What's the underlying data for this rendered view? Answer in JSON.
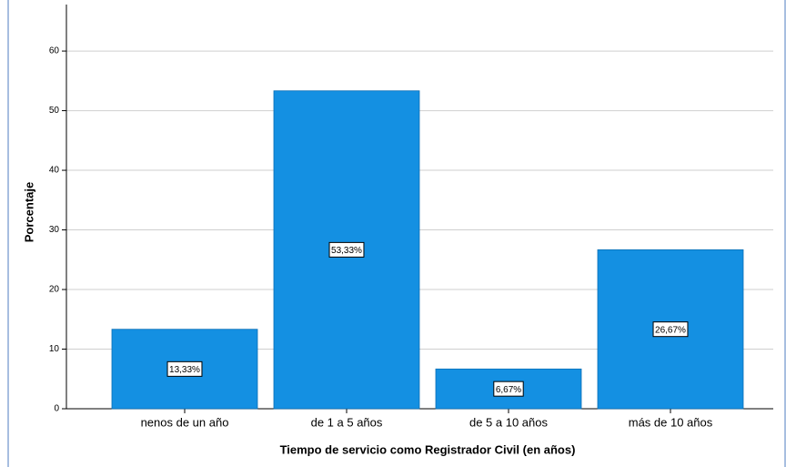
{
  "chart_data": {
    "type": "bar",
    "x_label": "Tiempo de servicio como Registrador Civil (en años)",
    "y_label": "Porcentaje",
    "categories": [
      "nenos de un año",
      "de 1 a 5 años",
      "de 5 a 10 años",
      "más de 10 años"
    ],
    "values": [
      13.33,
      53.33,
      6.67,
      26.67
    ],
    "value_labels": [
      "13,33%",
      "53,33%",
      "6,67%",
      "26,67%"
    ],
    "color": "#1490e2",
    "ylim": [
      0,
      67.8
    ],
    "yticks": [
      0,
      10,
      20,
      30,
      40,
      50,
      60
    ],
    "grid": true
  }
}
